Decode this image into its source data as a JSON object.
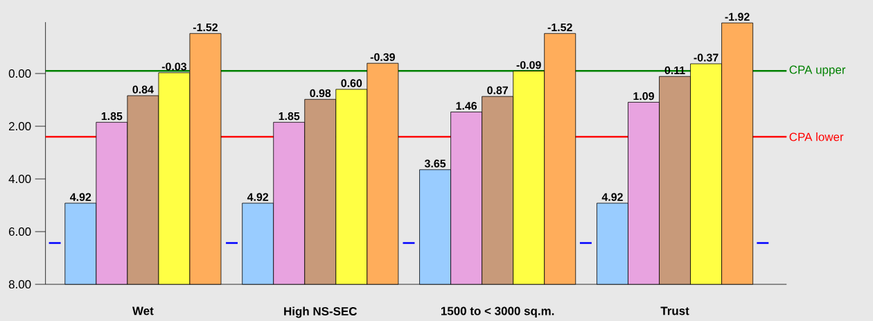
{
  "chart_data": {
    "type": "bar",
    "categories": [
      "Wet",
      "High NS-SEC",
      "1500 to < 3000 sq.m.",
      "Trust"
    ],
    "series": [
      {
        "color": "#99ccff",
        "base": [
          8,
          8,
          8,
          8
        ],
        "values": [
          -3.08,
          -3.08,
          -4.35,
          -3.08
        ],
        "value_labels": [
          "4.92",
          "4.92",
          "3.65",
          "4.92"
        ]
      },
      {
        "color": "#e8a3e0",
        "base": [
          8,
          8,
          8,
          8
        ],
        "values": [
          -6.15,
          -6.15,
          -6.54,
          -6.91
        ],
        "value_labels": [
          "1.85",
          "1.85",
          "1.46",
          "1.09"
        ]
      },
      {
        "color": "#c89a7a",
        "base": [
          8,
          8,
          8,
          8
        ],
        "values": [
          -7.16,
          -7.02,
          -7.13,
          -7.89
        ],
        "value_labels": [
          "0.84",
          "0.98",
          "0.87",
          "0.11"
        ]
      },
      {
        "color": "#ffff44",
        "base": [
          8,
          8,
          8,
          8
        ],
        "values": [
          -8.03,
          -7.4,
          -8.09,
          -8.37
        ],
        "value_labels": [
          "-0.03",
          "0.60",
          "-0.09",
          "-0.37"
        ]
      },
      {
        "color": "#ffad5b",
        "base": [
          8,
          8,
          8,
          8
        ],
        "values": [
          -9.52,
          -8.39,
          -9.52,
          -9.92
        ],
        "value_labels": [
          "-1.52",
          "-0.39",
          "-1.52",
          "-1.92"
        ]
      }
    ],
    "ylim": [
      8,
      -1.95
    ],
    "yticks": [
      {
        "value": 0,
        "label": "0.00"
      },
      {
        "value": 2,
        "label": "2.00"
      },
      {
        "value": 4,
        "label": "4.00"
      },
      {
        "value": 6,
        "label": "6.00"
      },
      {
        "value": 8,
        "label": "8.00"
      }
    ],
    "ref_lines": [
      {
        "axis": "y",
        "value": -0.1,
        "label": "CPA upper",
        "color": "#008000"
      },
      {
        "axis": "y",
        "value": 2.4,
        "label": "CPA lower",
        "color": "#ff0000"
      },
      {
        "axis": "y",
        "value": 6.43,
        "color": "#0000ff",
        "line_style": "dashed"
      }
    ],
    "grid": false
  }
}
